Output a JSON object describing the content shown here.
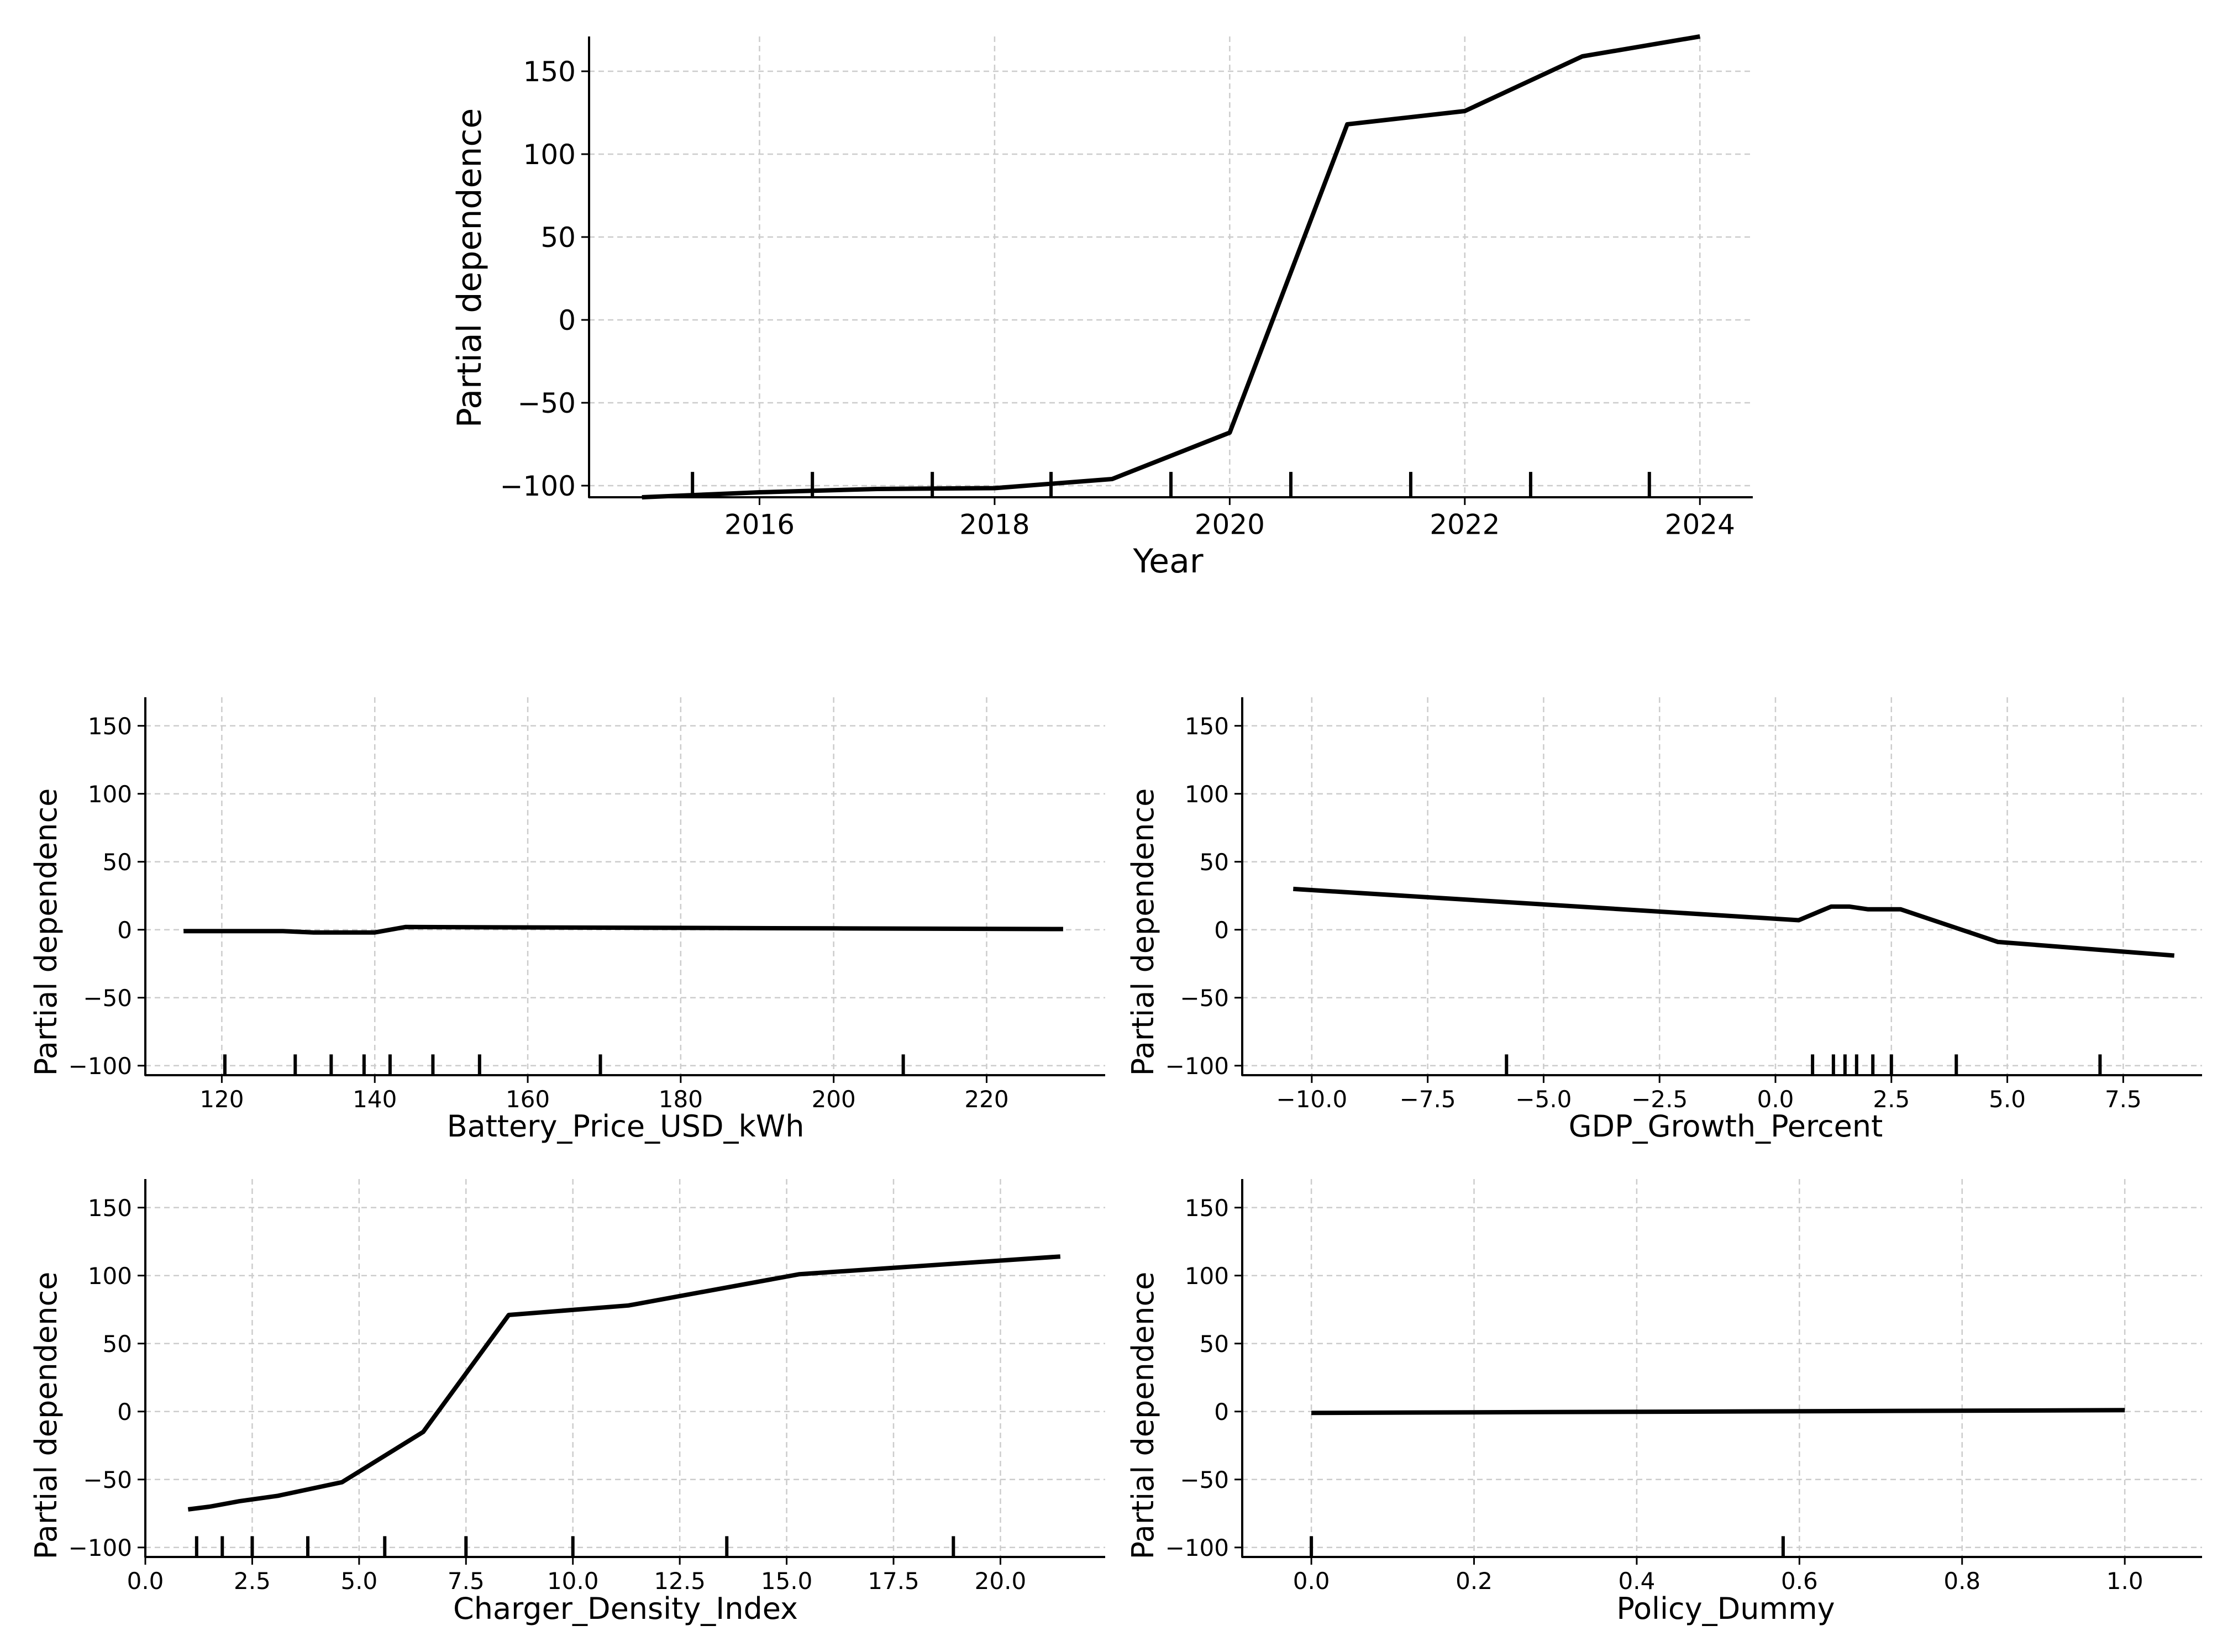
{
  "chart_data": [
    {
      "type": "line",
      "xlabel": "Year",
      "ylabel": "Partial dependence",
      "xlim": [
        2014.55,
        2024.45
      ],
      "ylim": [
        -107,
        171
      ],
      "xticks": [
        2016,
        2018,
        2020,
        2022,
        2024
      ],
      "xtick_labels": [
        "2016",
        "2018",
        "2020",
        "2022",
        "2024"
      ],
      "yticks": [
        -100,
        -50,
        0,
        50,
        100,
        150
      ],
      "ytick_labels": [
        "−100",
        "−50",
        "0",
        "50",
        "100",
        "150"
      ],
      "grid": true,
      "x": [
        2015,
        2016,
        2017,
        2018,
        2019,
        2020,
        2021,
        2022,
        2023,
        2024
      ],
      "y": [
        -107,
        -104,
        -102,
        -101.5,
        -96,
        -68,
        118,
        126,
        159,
        171
      ],
      "rug": [
        2015.43,
        2016.45,
        2017.47,
        2018.48,
        2019.5,
        2020.52,
        2021.54,
        2022.56,
        2023.57
      ]
    },
    {
      "type": "line",
      "xlabel": "Battery_Price_USD_kWh",
      "ylabel": "Partial dependence",
      "xlim": [
        110,
        235.5
      ],
      "ylim": [
        -107,
        171
      ],
      "xticks": [
        120,
        140,
        160,
        180,
        200,
        220
      ],
      "xtick_labels": [
        "120",
        "140",
        "160",
        "180",
        "200",
        "220"
      ],
      "yticks": [
        -100,
        -50,
        0,
        50,
        100,
        150
      ],
      "ytick_labels": [
        "−100",
        "−50",
        "0",
        "50",
        "100",
        "150"
      ],
      "grid": true,
      "x": [
        115,
        128,
        132,
        140,
        144,
        170,
        200,
        230
      ],
      "y": [
        -1,
        -1,
        -2,
        -2,
        2,
        1.5,
        1,
        0.5
      ],
      "rug": [
        120.4,
        129.6,
        134.3,
        138.6,
        142,
        147.6,
        153.7,
        169.5,
        209.1
      ]
    },
    {
      "type": "line",
      "xlabel": "GDP_Growth_Percent",
      "ylabel": "Partial dependence",
      "xlim": [
        -11.5,
        9.2
      ],
      "ylim": [
        -107,
        171
      ],
      "xticks": [
        -10,
        -7.5,
        -5,
        -2.5,
        0,
        2.5,
        5,
        7.5
      ],
      "xtick_labels": [
        "−10.0",
        "−7.5",
        "−5.0",
        "−2.5",
        "0.0",
        "2.5",
        "5.0",
        "7.5"
      ],
      "yticks": [
        -100,
        -50,
        0,
        50,
        100,
        150
      ],
      "ytick_labels": [
        "−100",
        "−50",
        "0",
        "50",
        "100",
        "150"
      ],
      "grid": true,
      "x": [
        -10.4,
        0.5,
        1.2,
        1.6,
        2.0,
        2.7,
        4.8,
        8.6
      ],
      "y": [
        30,
        7,
        17,
        17,
        15,
        15,
        -9,
        -19
      ],
      "rug": [
        -5.8,
        0.8,
        1.25,
        1.5,
        1.75,
        2.1,
        2.5,
        3.9,
        7.0
      ]
    },
    {
      "type": "line",
      "xlabel": "Charger_Density_Index",
      "ylabel": "Partial dependence",
      "xlim": [
        0,
        22.45
      ],
      "ylim": [
        -107,
        171
      ],
      "xticks": [
        0,
        2.5,
        5,
        7.5,
        10,
        12.5,
        15,
        17.5,
        20
      ],
      "xtick_labels": [
        "0.0",
        "2.5",
        "5.0",
        "7.5",
        "10.0",
        "12.5",
        "15.0",
        "17.5",
        "20.0"
      ],
      "yticks": [
        -100,
        -50,
        0,
        50,
        100,
        150
      ],
      "ytick_labels": [
        "−100",
        "−50",
        "0",
        "50",
        "100",
        "150"
      ],
      "grid": true,
      "x": [
        1.0,
        1.5,
        2.2,
        3.1,
        4.6,
        6.5,
        8.5,
        11.3,
        15.3,
        21.4
      ],
      "y": [
        -72,
        -70,
        -66,
        -62,
        -52,
        -15,
        71,
        78,
        101,
        114
      ],
      "rug": [
        1.2,
        1.8,
        2.5,
        3.8,
        5.6,
        7.5,
        10,
        13.6,
        18.9
      ]
    },
    {
      "type": "line",
      "xlabel": "Policy_Dummy",
      "ylabel": "Partial dependence",
      "xlim": [
        -0.085,
        1.095
      ],
      "ylim": [
        -107,
        171
      ],
      "xticks": [
        0,
        0.2,
        0.4,
        0.6,
        0.8,
        1.0
      ],
      "xtick_labels": [
        "0.0",
        "0.2",
        "0.4",
        "0.6",
        "0.8",
        "1.0"
      ],
      "yticks": [
        -100,
        -50,
        0,
        50,
        100,
        150
      ],
      "ytick_labels": [
        "−100",
        "−50",
        "0",
        "50",
        "100",
        "150"
      ],
      "grid": true,
      "x": [
        0,
        1
      ],
      "y": [
        -1,
        1
      ],
      "rug": [
        0,
        0.58
      ]
    }
  ],
  "colors": {
    "line": "#000000",
    "grid": "#cccccc",
    "background": "#ffffff"
  }
}
